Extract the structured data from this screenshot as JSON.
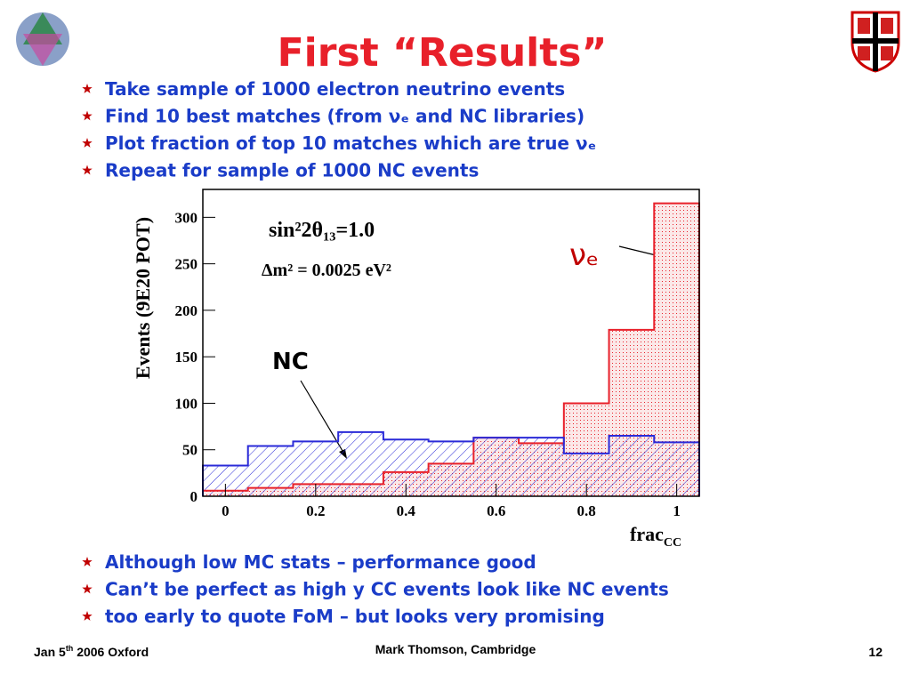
{
  "slide": {
    "title": "First “Results”",
    "bullets_top": [
      "Take sample of 1000 electron neutrino events",
      "Find 10 best matches (from νₑ and NC libraries)",
      "Plot fraction of top 10 matches which are true νₑ",
      "Repeat for sample of 1000 NC events"
    ],
    "bullets_bottom": [
      "Although low MC stats – performance good",
      "Can’t be perfect as high y CC events look like NC events",
      "too early to quote FoM – but looks very promising"
    ],
    "footer": {
      "date": [
        "Jan 5",
        "th",
        " 2006 Oxford"
      ],
      "author": "Mark Thomson, Cambridge",
      "page": "12"
    }
  },
  "chart_data": {
    "type": "histogram",
    "ylabel": "Events (9E20 POT)",
    "xlabel": [
      "frac",
      "CC"
    ],
    "annotations": [
      "sin²2θ₁₃=1.0",
      "Δm² = 0.0025 eV²",
      "NC",
      "νₑ"
    ],
    "bins": [
      -0.05,
      0.05,
      0.15,
      0.25,
      0.35,
      0.45,
      0.55,
      0.65,
      0.75,
      0.85,
      0.95,
      1.05
    ],
    "series": [
      {
        "name": "νe",
        "color": "#e8202a",
        "values": [
          6,
          9,
          13,
          13,
          26,
          35,
          63,
          57,
          100,
          179,
          315
        ]
      },
      {
        "name": "NC",
        "color": "#2a2ad8",
        "values": [
          33,
          54,
          59,
          69,
          61,
          59,
          63,
          63,
          46,
          65,
          58
        ]
      }
    ],
    "xlim": [
      -0.05,
      1.05
    ],
    "xticks": [
      0,
      0.2,
      0.4,
      0.6,
      0.8,
      1
    ],
    "ylim": [
      0,
      330
    ],
    "yticks": [
      0,
      50,
      100,
      150,
      200,
      250,
      300
    ]
  }
}
